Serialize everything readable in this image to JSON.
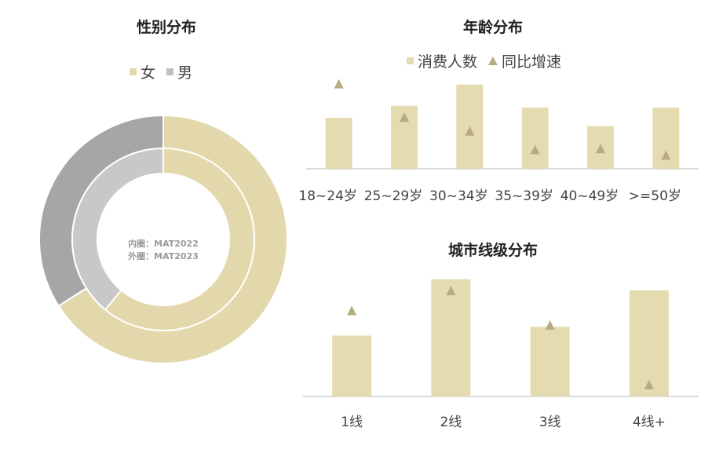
{
  "colors": {
    "female": "#e3d8ab",
    "male_outer": "#a6a6a6",
    "male_inner": "#c8c8c8",
    "bar": "#e5dbb0",
    "marker": "#b8aa82",
    "axis": "#d0d0d0"
  },
  "gender": {
    "title": "性别分布",
    "legend": [
      "女",
      "男"
    ],
    "center_label_1": "内圈：MAT2022",
    "center_label_2": "外圈：MAT2023"
  },
  "age": {
    "title": "年龄分布",
    "legend": [
      "消费人数",
      "同比增速"
    ]
  },
  "city": {
    "title": "城市线级分布"
  },
  "chart_data": [
    {
      "type": "pie",
      "title": "性别分布",
      "series": [
        {
          "name": "外圈：MAT2023",
          "categories": [
            "女",
            "男"
          ],
          "values": [
            66,
            34
          ]
        },
        {
          "name": "内圈：MAT2022",
          "categories": [
            "女",
            "男"
          ],
          "values": [
            61,
            39
          ]
        }
      ],
      "legend": "top"
    },
    {
      "type": "bar",
      "title": "年龄分布",
      "categories": [
        "18~24岁",
        "25~29岁",
        "30~34岁",
        "35~39岁",
        "40~49岁",
        ">=50岁"
      ],
      "series": [
        {
          "name": "消费人数",
          "values": [
            55,
            68,
            91,
            66,
            46,
            66
          ]
        },
        {
          "name": "同比增速",
          "values": [
            91,
            55,
            40,
            20,
            21,
            14
          ]
        }
      ],
      "ylim": [
        0,
        100
      ],
      "legend": "top"
    },
    {
      "type": "bar",
      "title": "城市线级分布",
      "categories": [
        "1线",
        "2线",
        "3线",
        "4线+"
      ],
      "series": [
        {
          "name": "消费人数",
          "values": [
            55,
            106,
            63,
            96
          ]
        },
        {
          "name": "同比增速",
          "values": [
            77,
            95,
            64,
            10
          ]
        }
      ],
      "ylim": [
        0,
        110
      ]
    }
  ]
}
